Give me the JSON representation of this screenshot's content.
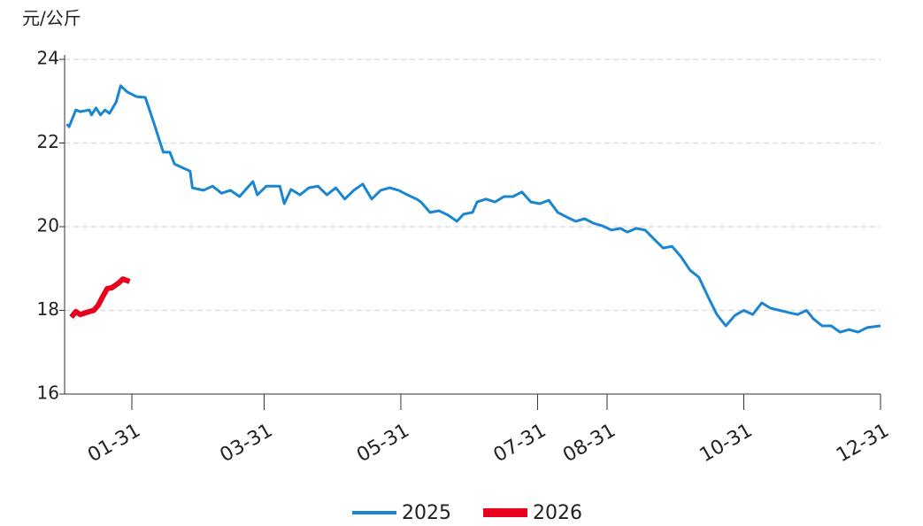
{
  "chart_data": {
    "type": "line",
    "y_label": "元/公斤",
    "xlim": [
      1,
      365
    ],
    "xticks": [
      {
        "value": 31,
        "label": "01-31"
      },
      {
        "value": 90,
        "label": "03-31"
      },
      {
        "value": 151,
        "label": "05-31"
      },
      {
        "value": 212,
        "label": "07-31"
      },
      {
        "value": 243,
        "label": "08-31"
      },
      {
        "value": 304,
        "label": "10-31"
      },
      {
        "value": 365,
        "label": "12-31"
      }
    ],
    "ylim": [
      16,
      24
    ],
    "yticks": [
      16,
      18,
      20,
      22,
      24
    ],
    "grid": true,
    "legend": "bottom",
    "series": [
      {
        "name": "2025",
        "color": "#1a85d0",
        "x": [
          2,
          3,
          6,
          8,
          12,
          13,
          15,
          17,
          19,
          21,
          24,
          26,
          29,
          33,
          37,
          41,
          45,
          48,
          50,
          54,
          57,
          58,
          63,
          67,
          71,
          75,
          79,
          85,
          87,
          91,
          97,
          99,
          102,
          106,
          110,
          114,
          118,
          122,
          126,
          130,
          134,
          138,
          142,
          146,
          150,
          154,
          158,
          160,
          164,
          168,
          172,
          176,
          179,
          183,
          185,
          189,
          193,
          197,
          201,
          205,
          209,
          213,
          217,
          221,
          225,
          229,
          233,
          237,
          241,
          245,
          249,
          252,
          256,
          260,
          264,
          268,
          272,
          276,
          280,
          284,
          288,
          292,
          296,
          300,
          304,
          308,
          312,
          316,
          320,
          324,
          328,
          332,
          335,
          339,
          343,
          347,
          351,
          355,
          359,
          365
        ],
        "values": [
          22.45,
          22.39,
          22.79,
          22.75,
          22.79,
          22.67,
          22.84,
          22.67,
          22.79,
          22.71,
          22.98,
          23.37,
          23.22,
          23.11,
          23.09,
          22.45,
          21.78,
          21.78,
          21.5,
          21.4,
          21.33,
          20.93,
          20.87,
          20.97,
          20.8,
          20.87,
          20.72,
          21.08,
          20.76,
          20.97,
          20.97,
          20.55,
          20.89,
          20.76,
          20.93,
          20.97,
          20.76,
          20.93,
          20.66,
          20.87,
          21.02,
          20.66,
          20.87,
          20.93,
          20.87,
          20.76,
          20.66,
          20.59,
          20.34,
          20.38,
          20.28,
          20.13,
          20.3,
          20.34,
          20.59,
          20.66,
          20.59,
          20.72,
          20.72,
          20.83,
          20.59,
          20.55,
          20.63,
          20.34,
          20.23,
          20.13,
          20.19,
          20.08,
          20.02,
          19.92,
          19.96,
          19.87,
          19.96,
          19.92,
          19.7,
          19.49,
          19.53,
          19.28,
          18.96,
          18.79,
          18.33,
          17.9,
          17.63,
          17.88,
          18.0,
          17.9,
          18.18,
          18.05,
          18.0,
          17.95,
          17.9,
          18.0,
          17.8,
          17.63,
          17.63,
          17.48,
          17.54,
          17.48,
          17.59,
          17.63
        ]
      },
      {
        "name": "2026",
        "color": "#e8001c",
        "x": [
          4,
          6,
          8,
          12,
          14,
          16,
          18,
          20,
          22,
          25,
          27,
          30
        ],
        "values": [
          17.84,
          17.97,
          17.9,
          17.97,
          18.0,
          18.12,
          18.33,
          18.52,
          18.54,
          18.65,
          18.75,
          18.69
        ]
      }
    ]
  }
}
